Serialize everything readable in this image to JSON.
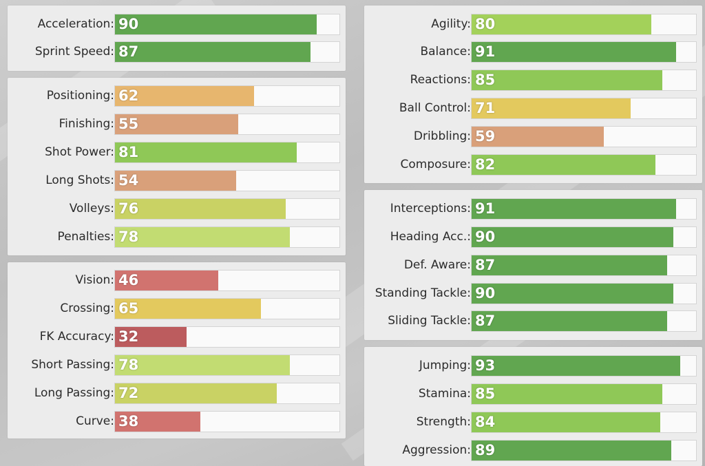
{
  "colors": {
    "dark_green": "#61a650",
    "green": "#8fc857",
    "light_green": "#a3d15a",
    "pale_green": "#c2dc72",
    "yellow_green": "#c9d264",
    "yellow": "#e3c95e",
    "light_orange": "#e7b66e",
    "orange": "#d9a07a",
    "red": "#d1736f",
    "dark_red": "#bc5c5e"
  },
  "panels": [
    {
      "name": "pace",
      "stats": [
        {
          "label": "Acceleration:",
          "value": 90,
          "color": "#61a650"
        },
        {
          "label": "Sprint Speed:",
          "value": 87,
          "color": "#61a650"
        }
      ]
    },
    {
      "name": "shooting",
      "stats": [
        {
          "label": "Positioning:",
          "value": 62,
          "color": "#e7b66e"
        },
        {
          "label": "Finishing:",
          "value": 55,
          "color": "#d9a07a"
        },
        {
          "label": "Shot Power:",
          "value": 81,
          "color": "#8fc857"
        },
        {
          "label": "Long Shots:",
          "value": 54,
          "color": "#d9a07a"
        },
        {
          "label": "Volleys:",
          "value": 76,
          "color": "#c9d264"
        },
        {
          "label": "Penalties:",
          "value": 78,
          "color": "#c2dc72"
        }
      ]
    },
    {
      "name": "passing",
      "stats": [
        {
          "label": "Vision:",
          "value": 46,
          "color": "#d1736f"
        },
        {
          "label": "Crossing:",
          "value": 65,
          "color": "#e3c95e"
        },
        {
          "label": "FK Accuracy:",
          "value": 32,
          "color": "#bc5c5e"
        },
        {
          "label": "Short Passing:",
          "value": 78,
          "color": "#c2dc72"
        },
        {
          "label": "Long Passing:",
          "value": 72,
          "color": "#c9d264"
        },
        {
          "label": "Curve:",
          "value": 38,
          "color": "#d1736f"
        }
      ]
    },
    {
      "name": "dribbling",
      "stats": [
        {
          "label": "Agility:",
          "value": 80,
          "color": "#a3d15a"
        },
        {
          "label": "Balance:",
          "value": 91,
          "color": "#61a650"
        },
        {
          "label": "Reactions:",
          "value": 85,
          "color": "#8fc857"
        },
        {
          "label": "Ball Control:",
          "value": 71,
          "color": "#e3c95e"
        },
        {
          "label": "Dribbling:",
          "value": 59,
          "color": "#d9a07a"
        },
        {
          "label": "Composure:",
          "value": 82,
          "color": "#8fc857"
        }
      ]
    },
    {
      "name": "defending",
      "stats": [
        {
          "label": "Interceptions:",
          "value": 91,
          "color": "#61a650"
        },
        {
          "label": "Heading Acc.:",
          "value": 90,
          "color": "#61a650"
        },
        {
          "label": "Def. Aware:",
          "value": 87,
          "color": "#61a650"
        },
        {
          "label": "Standing Tackle:",
          "value": 90,
          "color": "#61a650"
        },
        {
          "label": "Sliding Tackle:",
          "value": 87,
          "color": "#61a650"
        }
      ]
    },
    {
      "name": "physical",
      "stats": [
        {
          "label": "Jumping:",
          "value": 93,
          "color": "#61a650"
        },
        {
          "label": "Stamina:",
          "value": 85,
          "color": "#8fc857"
        },
        {
          "label": "Strength:",
          "value": 84,
          "color": "#8fc857"
        },
        {
          "label": "Aggression:",
          "value": 89,
          "color": "#61a650"
        }
      ]
    }
  ]
}
